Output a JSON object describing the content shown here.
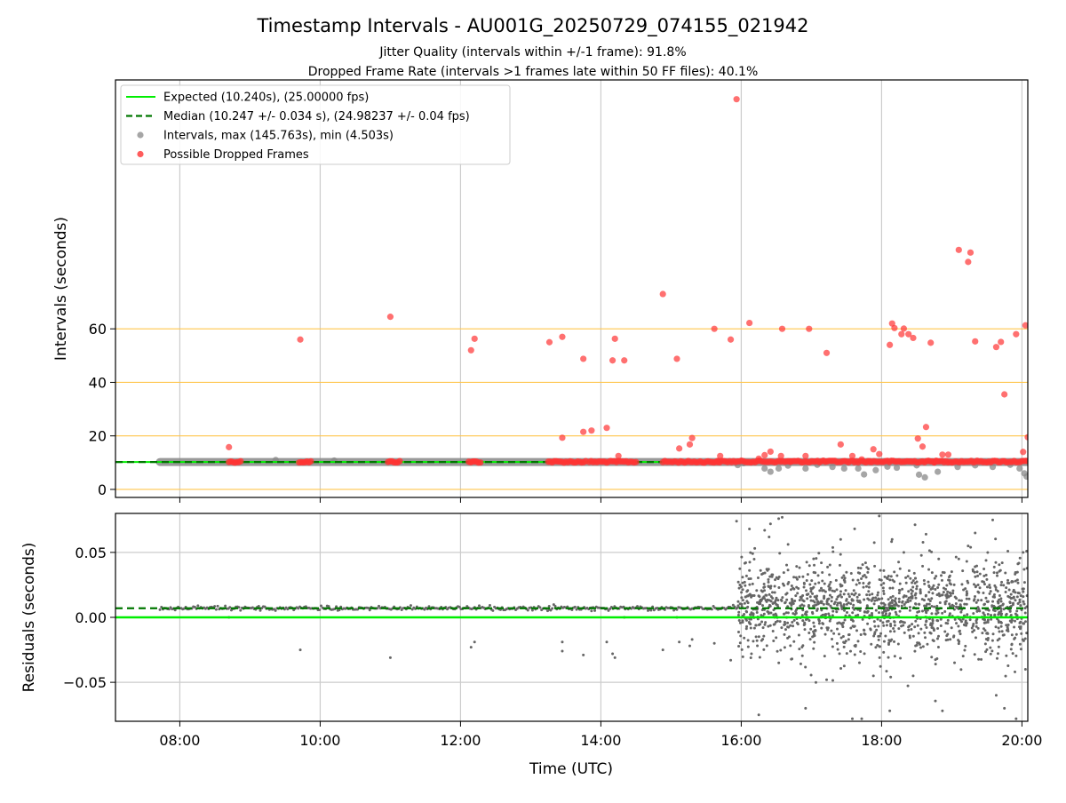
{
  "figure": {
    "title": "Timestamp Intervals - AU001G_20250729_074155_021942",
    "subtitle_line1": "Jitter Quality (intervals within +/-1 frame): 91.8%",
    "subtitle_line2": "Dropped Frame Rate (intervals >1 frames late within 50 FF files): 40.1%",
    "xlabel": "Time (UTC)"
  },
  "colors": {
    "expected": "#00ee00",
    "median": "#007700",
    "intervals": "#888888",
    "dropped": "#ff3333",
    "threshold": "#ffc64d",
    "grid": "#cccccc",
    "residuals": "#666666"
  },
  "chart_data": [
    {
      "type": "scatter",
      "panel": "top",
      "ylabel": "Intervals (seconds)",
      "xlim": [
        "07:05",
        "20:05"
      ],
      "ylim": [
        -3,
        153
      ],
      "x_ticks": [
        "08:00",
        "10:00",
        "12:00",
        "14:00",
        "16:00",
        "18:00",
        "20:00"
      ],
      "y_ticks": [
        0,
        20,
        40,
        60
      ],
      "threshold_lines": [
        0,
        20,
        40,
        60
      ],
      "grid": "vertical",
      "legend_position": "top-left",
      "legend": [
        {
          "kind": "line",
          "label": "Expected (10.240s), (25.00000 fps)"
        },
        {
          "kind": "dashed",
          "label": "Median (10.247 +/- 0.034 s), (24.98237 +/- 0.04 fps)"
        },
        {
          "kind": "gray-dot",
          "label": "Intervals, max (145.763s), min (4.503s)"
        },
        {
          "kind": "red-dot",
          "label": "Possible Dropped Frames"
        }
      ],
      "expected_value": 10.24,
      "median_value": 10.247,
      "interval_band": {
        "start": "07:43",
        "end": "20:05",
        "value": 10.24
      },
      "dropped_clusters": [
        {
          "start": "08:42",
          "end": "08:52",
          "value": 10.3
        },
        {
          "start": "09:42",
          "end": "09:52",
          "value": 10.3
        },
        {
          "start": "10:58",
          "end": "11:08",
          "value": 10.3
        },
        {
          "start": "12:07",
          "end": "12:17",
          "value": 10.3
        },
        {
          "start": "13:15",
          "end": "13:47",
          "value": 10.3
        },
        {
          "start": "13:50",
          "end": "14:30",
          "value": 10.3
        },
        {
          "start": "14:53",
          "end": "15:40",
          "value": 10.3
        },
        {
          "start": "15:40",
          "end": "16:42",
          "value": 10.4
        },
        {
          "start": "16:42",
          "end": "17:50",
          "value": 10.4
        },
        {
          "start": "17:50",
          "end": "18:45",
          "value": 10.4
        },
        {
          "start": "18:45",
          "end": "20:05",
          "value": 10.4
        }
      ],
      "dropped_points": [
        [
          "08:42",
          15.8
        ],
        [
          "09:43",
          56
        ],
        [
          "11:00",
          64.5
        ],
        [
          "12:09",
          52
        ],
        [
          "12:12",
          56.3
        ],
        [
          "13:16",
          55
        ],
        [
          "13:27",
          19.3
        ],
        [
          "13:27",
          57
        ],
        [
          "13:45",
          48.8
        ],
        [
          "13:45",
          21.5
        ],
        [
          "13:52",
          22
        ],
        [
          "14:05",
          23
        ],
        [
          "14:10",
          48.2
        ],
        [
          "14:12",
          56.3
        ],
        [
          "14:15",
          12.5
        ],
        [
          "14:20",
          48.2
        ],
        [
          "14:53",
          73
        ],
        [
          "15:05",
          48.8
        ],
        [
          "15:07",
          15.3
        ],
        [
          "15:16",
          16.8
        ],
        [
          "15:18",
          19.2
        ],
        [
          "15:37",
          60
        ],
        [
          "15:42",
          12.5
        ],
        [
          "15:51",
          56
        ],
        [
          "15:56",
          145.8
        ],
        [
          "16:07",
          62.2
        ],
        [
          "16:15",
          11.5
        ],
        [
          "16:20",
          12.8
        ],
        [
          "16:25",
          14.1
        ],
        [
          "16:34",
          12.5
        ],
        [
          "16:35",
          60
        ],
        [
          "16:55",
          12.5
        ],
        [
          "16:58",
          60
        ],
        [
          "17:13",
          51
        ],
        [
          "17:25",
          16.8
        ],
        [
          "17:35",
          12.5
        ],
        [
          "17:43",
          11.2
        ],
        [
          "17:53",
          15
        ],
        [
          "17:58",
          13.2
        ],
        [
          "18:07",
          54
        ],
        [
          "18:09",
          62
        ],
        [
          "18:11",
          60.3
        ],
        [
          "18:17",
          58
        ],
        [
          "18:19",
          60.1
        ],
        [
          "18:23",
          58
        ],
        [
          "18:27",
          56.6
        ],
        [
          "18:31",
          19
        ],
        [
          "18:35",
          16
        ],
        [
          "18:38",
          23.3
        ],
        [
          "18:42",
          54.8
        ],
        [
          "18:47",
          10.5
        ],
        [
          "18:52",
          13
        ],
        [
          "18:57",
          13
        ],
        [
          "19:06",
          89.5
        ],
        [
          "19:14",
          85
        ],
        [
          "19:16",
          88.5
        ],
        [
          "19:20",
          55.3
        ],
        [
          "19:38",
          53.2
        ],
        [
          "19:42",
          55.1
        ],
        [
          "19:45",
          35.5
        ],
        [
          "19:55",
          58
        ],
        [
          "20:01",
          14
        ],
        [
          "20:03",
          61.3
        ],
        [
          "20:05",
          19.5
        ]
      ],
      "interval_points": [
        [
          "09:22",
          11
        ],
        [
          "10:12",
          10.8
        ],
        [
          "15:57",
          9.1
        ],
        [
          "16:02",
          9.8
        ],
        [
          "16:20",
          7.8
        ],
        [
          "16:25",
          6.6
        ],
        [
          "16:32",
          7.8
        ],
        [
          "16:40",
          8.9
        ],
        [
          "16:55",
          7.8
        ],
        [
          "17:05",
          9.2
        ],
        [
          "17:18",
          8.4
        ],
        [
          "17:28",
          7.8
        ],
        [
          "17:40",
          7.8
        ],
        [
          "17:45",
          5.6
        ],
        [
          "17:55",
          7.2
        ],
        [
          "18:05",
          8.5
        ],
        [
          "18:13",
          8.1
        ],
        [
          "18:30",
          9
        ],
        [
          "18:32",
          5.5
        ],
        [
          "18:37",
          4.5
        ],
        [
          "18:48",
          6.6
        ],
        [
          "19:05",
          8.4
        ],
        [
          "19:20",
          9
        ],
        [
          "19:35",
          8.4
        ],
        [
          "19:50",
          9.2
        ],
        [
          "19:58",
          7.8
        ],
        [
          "20:02",
          6
        ],
        [
          "20:04",
          4.8
        ]
      ]
    },
    {
      "type": "scatter",
      "panel": "bottom",
      "ylabel": "Residuals (seconds)",
      "xlabel": "Time (UTC)",
      "xlim": [
        "07:05",
        "20:05"
      ],
      "ylim": [
        -0.08,
        0.08
      ],
      "x_ticks": [
        "08:00",
        "10:00",
        "12:00",
        "14:00",
        "16:00",
        "18:00",
        "20:00"
      ],
      "y_ticks": [
        0.05,
        0.0,
        -0.05
      ],
      "y_tick_labels": [
        "0.05",
        "0.00",
        "−0.05"
      ],
      "grid": "both",
      "expected_value": 0.0,
      "median_value": 0.007,
      "early_band": {
        "start": "07:43",
        "end": "15:57",
        "value": 0.007,
        "spread": 0.0015
      },
      "late_scatter": {
        "start": "15:57",
        "end": "20:05",
        "center": 0.008,
        "spread": 0.018,
        "count": 1400
      },
      "outlier_points": [
        [
          "08:42",
          0.0
        ],
        [
          "09:43",
          -0.025
        ],
        [
          "11:00",
          -0.031
        ],
        [
          "12:09",
          -0.023
        ],
        [
          "12:12",
          -0.019
        ],
        [
          "13:16",
          0.006
        ],
        [
          "13:27",
          -0.026
        ],
        [
          "13:27",
          -0.019
        ],
        [
          "13:45",
          -0.029
        ],
        [
          "13:52",
          0.005
        ],
        [
          "14:05",
          -0.019
        ],
        [
          "14:10",
          -0.028
        ],
        [
          "14:12",
          -0.031
        ],
        [
          "14:20",
          0.0
        ],
        [
          "14:53",
          -0.025
        ],
        [
          "15:05",
          0.0
        ],
        [
          "15:07",
          -0.019
        ],
        [
          "15:16",
          -0.022
        ],
        [
          "15:18",
          -0.017
        ],
        [
          "15:37",
          -0.02
        ],
        [
          "15:51",
          -0.033
        ],
        [
          "15:56",
          0.074
        ],
        [
          "16:07",
          0.068
        ],
        [
          "16:15",
          -0.075
        ],
        [
          "16:20",
          0.067
        ],
        [
          "16:25",
          0.072
        ],
        [
          "16:32",
          0.076
        ],
        [
          "16:35",
          0.077
        ],
        [
          "16:55",
          -0.07
        ],
        [
          "17:13",
          -0.048
        ],
        [
          "17:25",
          0.06
        ],
        [
          "17:35",
          -0.078
        ],
        [
          "17:43",
          -0.078
        ],
        [
          "17:53",
          -0.045
        ],
        [
          "17:58",
          0.078
        ],
        [
          "18:07",
          -0.072
        ],
        [
          "18:09",
          0.06
        ],
        [
          "18:19",
          0.05
        ],
        [
          "18:27",
          -0.045
        ],
        [
          "18:38",
          0.064
        ],
        [
          "18:52",
          -0.072
        ],
        [
          "19:06",
          0.045
        ],
        [
          "19:14",
          0.055
        ],
        [
          "19:20",
          0.065
        ],
        [
          "19:35",
          0.075
        ],
        [
          "19:38",
          -0.06
        ],
        [
          "19:45",
          -0.07
        ],
        [
          "19:55",
          -0.078
        ],
        [
          "20:01",
          0.05
        ],
        [
          "20:03",
          -0.04
        ]
      ]
    }
  ]
}
